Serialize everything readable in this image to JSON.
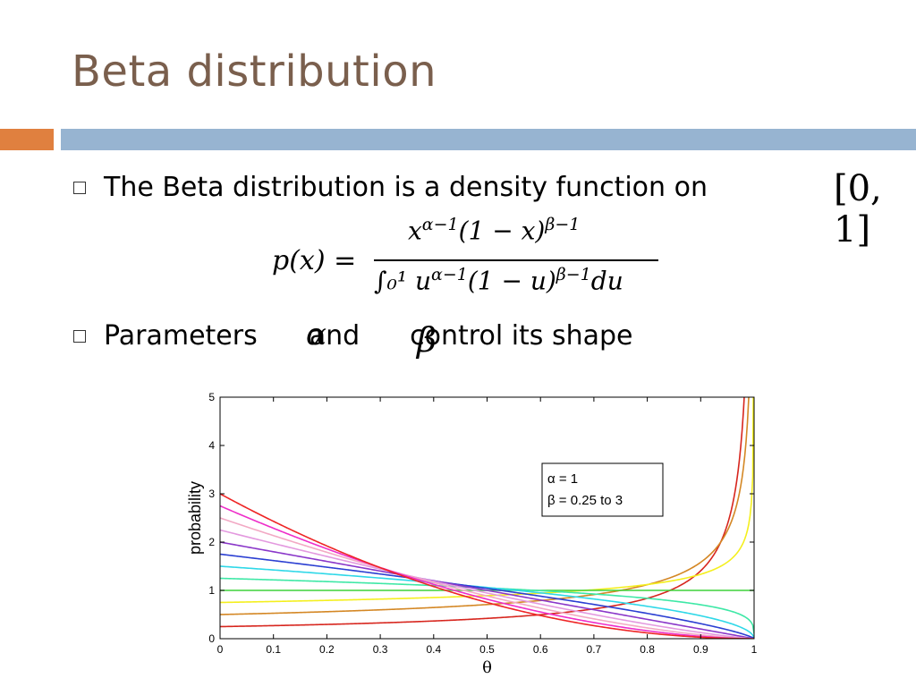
{
  "slide": {
    "title": "Beta distribution",
    "bullet1_text": "The Beta distribution is a density function on",
    "interval": "[0, 1]",
    "formula": {
      "lhs": "p(x) =",
      "numerator": "xα−1(1 − x)β−1",
      "denominator": "∫₀¹ uα−1(1 − u)β−1du"
    },
    "bullet2_before": "Parameters",
    "alpha_symbol": "α",
    "bullet2_and": "and",
    "beta_symbol": "β",
    "bullet2_after": "control its shape"
  },
  "colors": {
    "title": "#7a5f4d",
    "accent_orange": "#e0803f",
    "accent_blue": "#97b4d1"
  },
  "chart_data": {
    "type": "line",
    "title": "",
    "xlabel": "θ",
    "ylabel": "probability",
    "xlim": [
      0,
      1
    ],
    "ylim": [
      0,
      5
    ],
    "x_ticks": [
      "0",
      "0.1",
      "0.2",
      "0.3",
      "0.4",
      "0.5",
      "0.6",
      "0.7",
      "0.8",
      "0.9",
      "1"
    ],
    "y_ticks": [
      "0",
      "1",
      "2",
      "3",
      "4",
      "5"
    ],
    "grid": false,
    "legend": {
      "placement": "upper-right",
      "lines": [
        "α = 1",
        "β = 0.25 to 3"
      ]
    },
    "alpha": 1,
    "series": [
      {
        "beta": 0.25,
        "color": "#d7261e"
      },
      {
        "beta": 0.5,
        "color": "#d48724"
      },
      {
        "beta": 0.75,
        "color": "#f4ef1e"
      },
      {
        "beta": 1.0,
        "color": "#3fd23a"
      },
      {
        "beta": 1.25,
        "color": "#3ee8a6"
      },
      {
        "beta": 1.5,
        "color": "#2fd8e8"
      },
      {
        "beta": 1.75,
        "color": "#2b3fd2"
      },
      {
        "beta": 2.0,
        "color": "#8a37c9"
      },
      {
        "beta": 2.25,
        "color": "#e399df"
      },
      {
        "beta": 2.5,
        "color": "#f2a9c4"
      },
      {
        "beta": 2.75,
        "color": "#ee2ec9"
      },
      {
        "beta": 3.0,
        "color": "#ee2525"
      }
    ]
  }
}
